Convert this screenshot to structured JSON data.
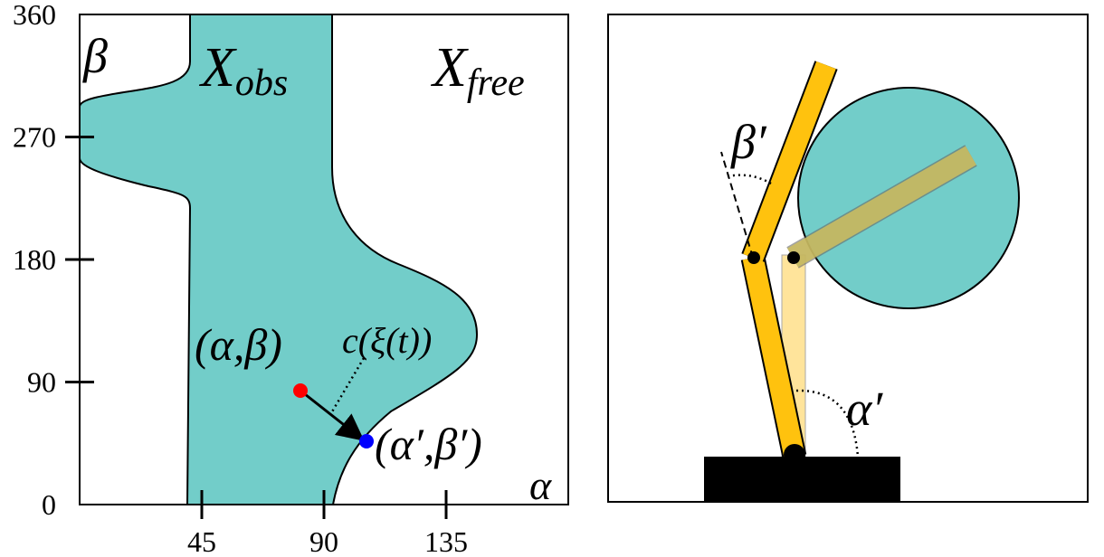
{
  "config_space": {
    "beta_label": "β",
    "obstacle_label": {
      "main": "X",
      "sub": "obs"
    },
    "free_label": {
      "main": "X",
      "sub": "free"
    },
    "alpha_label": "α",
    "start_label": "(α,β)",
    "path_label": "c(ξ(t))",
    "contact_label": "(α′,β′)",
    "xticks": [
      45,
      90,
      135
    ],
    "yticks": [
      0,
      90,
      180,
      270,
      360
    ]
  },
  "workspace": {
    "beta_label": "β′",
    "alpha_label": "α′"
  }
}
